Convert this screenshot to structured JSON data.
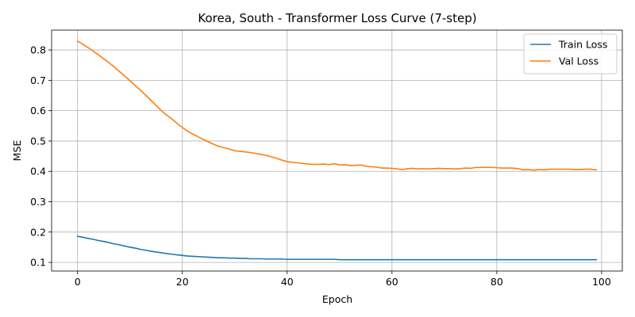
{
  "chart_data": {
    "type": "line",
    "title": "Korea, South - Transformer Loss Curve (7-step)",
    "xlabel": "Epoch",
    "ylabel": "MSE",
    "xlim": [
      -4.95,
      103.95
    ],
    "ylim": [
      0.0715,
      0.8655
    ],
    "xticks": [
      0,
      20,
      40,
      60,
      80,
      100
    ],
    "yticks": [
      0.1,
      0.2,
      0.3,
      0.4,
      0.5,
      0.6,
      0.7,
      0.8
    ],
    "xtick_labels": [
      "0",
      "20",
      "40",
      "60",
      "80",
      "100"
    ],
    "ytick_labels": [
      "0.1",
      "0.2",
      "0.3",
      "0.4",
      "0.5",
      "0.6",
      "0.7",
      "0.8"
    ],
    "grid": true,
    "legend_position": "top-right",
    "x": [
      0,
      1,
      2,
      3,
      4,
      5,
      6,
      7,
      8,
      9,
      10,
      11,
      12,
      13,
      14,
      15,
      16,
      17,
      18,
      19,
      20,
      21,
      22,
      23,
      24,
      25,
      26,
      27,
      28,
      29,
      30,
      31,
      32,
      33,
      34,
      35,
      36,
      37,
      38,
      39,
      40,
      41,
      42,
      43,
      44,
      45,
      46,
      47,
      48,
      49,
      50,
      51,
      52,
      53,
      54,
      55,
      56,
      57,
      58,
      59,
      60,
      61,
      62,
      63,
      64,
      65,
      66,
      67,
      68,
      69,
      70,
      71,
      72,
      73,
      74,
      75,
      76,
      77,
      78,
      79,
      80,
      81,
      82,
      83,
      84,
      85,
      86,
      87,
      88,
      89,
      90,
      91,
      92,
      93,
      94,
      95,
      96,
      97,
      98,
      99
    ],
    "series": [
      {
        "name": "Train Loss",
        "color": "#1f77b4",
        "values": [
          0.186,
          0.183,
          0.179,
          0.176,
          0.172,
          0.169,
          0.165,
          0.161,
          0.158,
          0.154,
          0.15,
          0.147,
          0.143,
          0.14,
          0.137,
          0.134,
          0.132,
          0.129,
          0.127,
          0.125,
          0.123,
          0.121,
          0.12,
          0.119,
          0.118,
          0.117,
          0.116,
          0.115,
          0.115,
          0.114,
          0.114,
          0.113,
          0.113,
          0.112,
          0.112,
          0.112,
          0.111,
          0.111,
          0.111,
          0.111,
          0.11,
          0.11,
          0.11,
          0.11,
          0.11,
          0.11,
          0.11,
          0.11,
          0.11,
          0.11,
          0.109,
          0.109,
          0.109,
          0.109,
          0.109,
          0.109,
          0.109,
          0.109,
          0.109,
          0.109,
          0.109,
          0.109,
          0.109,
          0.109,
          0.109,
          0.109,
          0.109,
          0.109,
          0.109,
          0.109,
          0.109,
          0.109,
          0.109,
          0.109,
          0.109,
          0.109,
          0.109,
          0.109,
          0.109,
          0.109,
          0.109,
          0.109,
          0.109,
          0.109,
          0.109,
          0.109,
          0.109,
          0.109,
          0.109,
          0.109,
          0.109,
          0.109,
          0.109,
          0.109,
          0.109,
          0.109,
          0.109,
          0.109,
          0.109,
          0.109
        ]
      },
      {
        "name": "Val Loss",
        "color": "#ff7f0e",
        "values": [
          0.829,
          0.819,
          0.808,
          0.796,
          0.784,
          0.771,
          0.758,
          0.744,
          0.729,
          0.714,
          0.699,
          0.683,
          0.667,
          0.651,
          0.634,
          0.617,
          0.6,
          0.585,
          0.573,
          0.558,
          0.545,
          0.532,
          0.523,
          0.514,
          0.505,
          0.497,
          0.489,
          0.482,
          0.478,
          0.473,
          0.468,
          0.466,
          0.464,
          0.462,
          0.459,
          0.456,
          0.453,
          0.448,
          0.443,
          0.437,
          0.432,
          0.43,
          0.428,
          0.426,
          0.424,
          0.423,
          0.423,
          0.424,
          0.422,
          0.425,
          0.421,
          0.422,
          0.419,
          0.42,
          0.421,
          0.417,
          0.415,
          0.414,
          0.411,
          0.411,
          0.41,
          0.408,
          0.406,
          0.409,
          0.41,
          0.408,
          0.409,
          0.408,
          0.409,
          0.41,
          0.409,
          0.409,
          0.408,
          0.409,
          0.411,
          0.41,
          0.413,
          0.413,
          0.413,
          0.413,
          0.412,
          0.411,
          0.411,
          0.411,
          0.409,
          0.405,
          0.406,
          0.404,
          0.406,
          0.405,
          0.407,
          0.407,
          0.407,
          0.407,
          0.407,
          0.406,
          0.406,
          0.407,
          0.407,
          0.405
        ]
      }
    ]
  }
}
